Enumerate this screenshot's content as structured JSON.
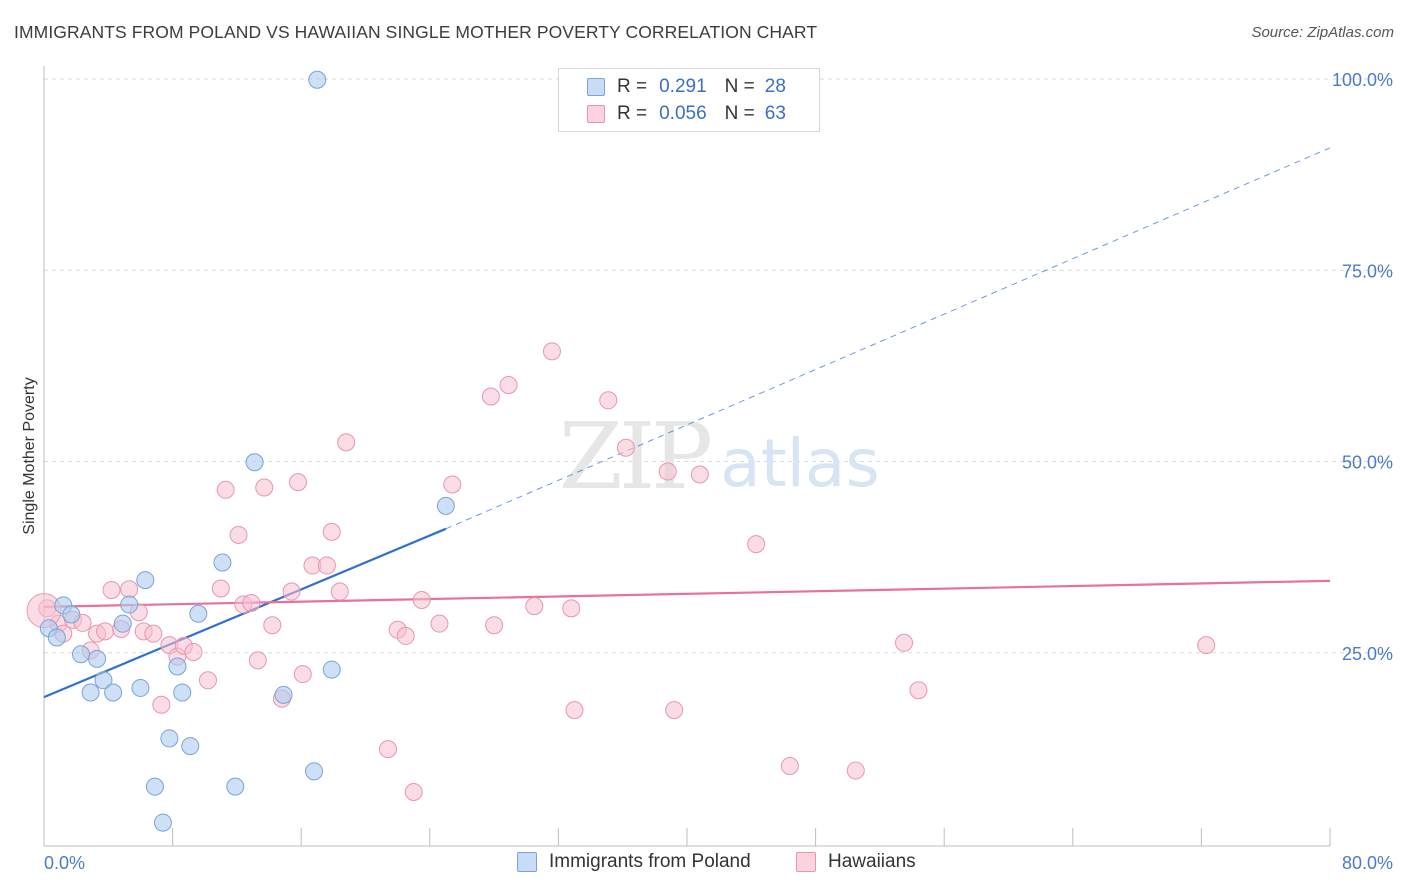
{
  "title": "IMMIGRANTS FROM POLAND VS HAWAIIAN SINGLE MOTHER POVERTY CORRELATION CHART",
  "source": "Source: ZipAtlas.com",
  "watermark": {
    "zip": "ZIP",
    "atlas": "atlas"
  },
  "legend": {
    "r_label": "R =",
    "n_label": "N =",
    "rows": [
      {
        "r": "0.291",
        "n": "28",
        "color": "#4a7bc8"
      },
      {
        "r": "0.056",
        "n": "63",
        "color": "#e8709a"
      }
    ]
  },
  "colors": {
    "blue_fill": "#aecbf0",
    "blue_stroke": "#7aa3d8",
    "blue_line": "#2f6fcf",
    "pink_fill": "#f5c0d0",
    "pink_stroke": "#e896b0",
    "pink_line": "#e8709a",
    "grid": "#d9d9d9",
    "tick_label": "#4a7bc8"
  },
  "chart_data": {
    "type": "scatter",
    "title": "IMMIGRANTS FROM POLAND VS HAWAIIAN SINGLE MOTHER POVERTY CORRELATION CHART",
    "xlabel": "",
    "ylabel": "Single Mother Poverty",
    "xlim": [
      0,
      80
    ],
    "ylim": [
      0,
      100
    ],
    "x_tick_labels": [
      "0.0%",
      "80.0%"
    ],
    "y_tick_labels": [
      "25.0%",
      "50.0%",
      "75.0%",
      "100.0%"
    ],
    "y_ticks": [
      25,
      50,
      75,
      100
    ],
    "grid": true,
    "legend_position": "top-center",
    "series": [
      {
        "name": "Immigrants from Poland",
        "color": "#4a7bc8",
        "r": 0.291,
        "n": 28,
        "points": [
          [
            0.3,
            28.2
          ],
          [
            0.8,
            27.0
          ],
          [
            1.2,
            31.2
          ],
          [
            1.7,
            30.0
          ],
          [
            2.3,
            24.8
          ],
          [
            3.3,
            24.2
          ],
          [
            2.9,
            19.8
          ],
          [
            3.7,
            21.4
          ],
          [
            4.3,
            19.8
          ],
          [
            5.3,
            31.3
          ],
          [
            4.9,
            28.8
          ],
          [
            6.0,
            20.4
          ],
          [
            6.3,
            34.5
          ],
          [
            6.9,
            7.5
          ],
          [
            7.4,
            2.8
          ],
          [
            7.8,
            13.8
          ],
          [
            8.3,
            23.2
          ],
          [
            8.6,
            19.8
          ],
          [
            9.1,
            12.8
          ],
          [
            9.6,
            30.1
          ],
          [
            11.1,
            36.8
          ],
          [
            11.9,
            7.5
          ],
          [
            13.1,
            49.9
          ],
          [
            14.9,
            19.5
          ],
          [
            16.8,
            9.5
          ],
          [
            17.9,
            22.8
          ],
          [
            25.0,
            44.2
          ],
          [
            17.0,
            99.9
          ]
        ],
        "trend": {
          "x": [
            0,
            25.0
          ],
          "y": [
            19.2,
            41.2
          ],
          "dashed_to": [
            80,
            91.0
          ]
        }
      },
      {
        "name": "Hawaiians",
        "color": "#e8709a",
        "r": 0.056,
        "n": 63,
        "points": [
          [
            0.2,
            30.8
          ],
          [
            0.9,
            28.8
          ],
          [
            1.2,
            27.5
          ],
          [
            1.8,
            29.3
          ],
          [
            2.4,
            28.9
          ],
          [
            2.9,
            25.3
          ],
          [
            3.3,
            27.5
          ],
          [
            3.8,
            27.8
          ],
          [
            4.2,
            33.2
          ],
          [
            4.8,
            28.1
          ],
          [
            5.3,
            33.3
          ],
          [
            5.9,
            30.3
          ],
          [
            6.2,
            27.8
          ],
          [
            6.8,
            27.5
          ],
          [
            7.3,
            18.2
          ],
          [
            7.8,
            26.0
          ],
          [
            8.3,
            24.5
          ],
          [
            8.7,
            25.9
          ],
          [
            9.3,
            25.1
          ],
          [
            10.2,
            21.4
          ],
          [
            11.0,
            33.4
          ],
          [
            11.3,
            46.3
          ],
          [
            12.1,
            40.4
          ],
          [
            12.4,
            31.3
          ],
          [
            12.9,
            31.5
          ],
          [
            13.3,
            24.0
          ],
          [
            13.7,
            46.6
          ],
          [
            14.2,
            28.6
          ],
          [
            14.8,
            19.0
          ],
          [
            15.4,
            33.0
          ],
          [
            15.8,
            47.3
          ],
          [
            16.1,
            22.2
          ],
          [
            16.7,
            36.4
          ],
          [
            17.6,
            36.4
          ],
          [
            17.9,
            40.8
          ],
          [
            18.4,
            33.0
          ],
          [
            18.8,
            52.5
          ],
          [
            21.4,
            12.4
          ],
          [
            22.0,
            28.0
          ],
          [
            22.5,
            27.2
          ],
          [
            23.0,
            6.8
          ],
          [
            23.5,
            31.9
          ],
          [
            24.6,
            28.8
          ],
          [
            25.4,
            47.0
          ],
          [
            27.8,
            58.5
          ],
          [
            28.0,
            28.6
          ],
          [
            28.9,
            60.0
          ],
          [
            30.5,
            31.1
          ],
          [
            31.6,
            64.4
          ],
          [
            32.8,
            30.8
          ],
          [
            33.0,
            17.5
          ],
          [
            35.1,
            58.0
          ],
          [
            36.2,
            51.8
          ],
          [
            38.8,
            48.7
          ],
          [
            39.2,
            17.5
          ],
          [
            40.8,
            48.3
          ],
          [
            44.3,
            39.2
          ],
          [
            46.4,
            10.2
          ],
          [
            50.5,
            9.6
          ],
          [
            53.5,
            26.3
          ],
          [
            54.4,
            20.1
          ],
          [
            72.3,
            26.0
          ],
          [
            0.0,
            30.5
          ]
        ],
        "trend": {
          "x": [
            0,
            80
          ],
          "y": [
            31.0,
            34.4
          ]
        }
      }
    ]
  },
  "bottom_legend": [
    {
      "label": "Immigrants from Poland"
    },
    {
      "label": "Hawaiians"
    }
  ]
}
